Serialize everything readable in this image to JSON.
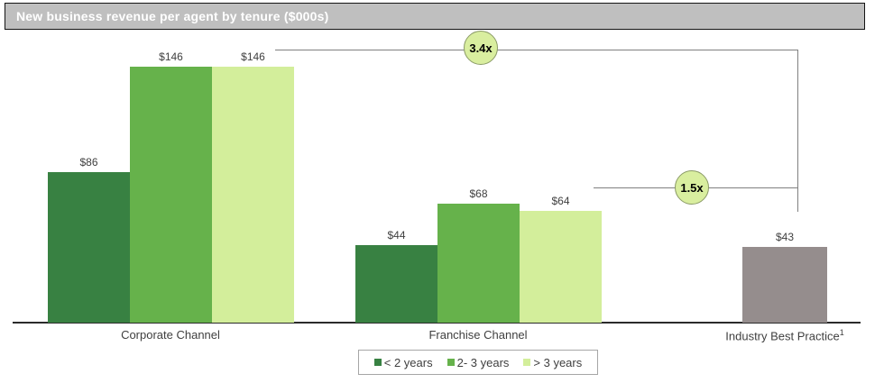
{
  "title": "New business revenue per agent by tenure ($000s)",
  "colors": {
    "title_bg": "#bfbfbf",
    "title_border": "#141414",
    "title_text": "#ffffff",
    "dark_green": "#388142",
    "mid_green": "#66b24b",
    "light_green": "#d3ee9b",
    "gray_bar": "#958d8d",
    "annotation_line": "#808080",
    "axis": "#2b2b2b",
    "circle_fill": "#d9ee9f",
    "circle_border": "#8a9a66",
    "circle_text": "#000000",
    "label_text": "#3f3f3f",
    "legend_border": "#a6a6a6"
  },
  "chart_data": {
    "type": "bar",
    "title": "New business revenue per agent by tenure ($000s)",
    "value_unit": "$000s",
    "y_axis_visible": false,
    "gridlines": false,
    "legend_position": "bottom",
    "categories": [
      {
        "label": "Corporate Channel",
        "superscript": ""
      },
      {
        "label": "Franchise Channel",
        "superscript": ""
      },
      {
        "label": "Industry Best Practice",
        "superscript": "1"
      }
    ],
    "series": [
      {
        "name": "< 2 years",
        "values": [
          86,
          44,
          null
        ]
      },
      {
        "name": "2- 3 years",
        "values": [
          146,
          68,
          null
        ]
      },
      {
        "name": "> 3 years",
        "values": [
          146,
          64,
          null
        ]
      },
      {
        "name": "Industry Best Practice",
        "values": [
          null,
          null,
          43
        ]
      }
    ],
    "bars": [
      {
        "category": "Corporate Channel",
        "tenure": "< 2 years",
        "value": 86,
        "label": "$86",
        "color": "dark_green"
      },
      {
        "category": "Corporate Channel",
        "tenure": "2- 3 years",
        "value": 146,
        "label": "$146",
        "color": "mid_green"
      },
      {
        "category": "Corporate Channel",
        "tenure": "> 3 years",
        "value": 146,
        "label": "$146",
        "color": "light_green"
      },
      {
        "category": "Franchise Channel",
        "tenure": "< 2 years",
        "value": 44,
        "label": "$44",
        "color": "dark_green"
      },
      {
        "category": "Franchise Channel",
        "tenure": "2- 3 years",
        "value": 68,
        "label": "$68",
        "color": "mid_green"
      },
      {
        "category": "Franchise Channel",
        "tenure": "> 3 years",
        "value": 64,
        "label": "$64",
        "color": "light_green"
      },
      {
        "category": "Industry Best Practice",
        "tenure": "",
        "value": 43,
        "label": "$43",
        "color": "gray_bar"
      }
    ],
    "annotations": [
      {
        "label": "3.4x"
      },
      {
        "label": "1.5x"
      }
    ],
    "legend": [
      {
        "label": "< 2 years",
        "color": "dark_green"
      },
      {
        "label": "2- 3 years",
        "color": "mid_green"
      },
      {
        "label": "> 3 years",
        "color": "light_green"
      }
    ]
  }
}
